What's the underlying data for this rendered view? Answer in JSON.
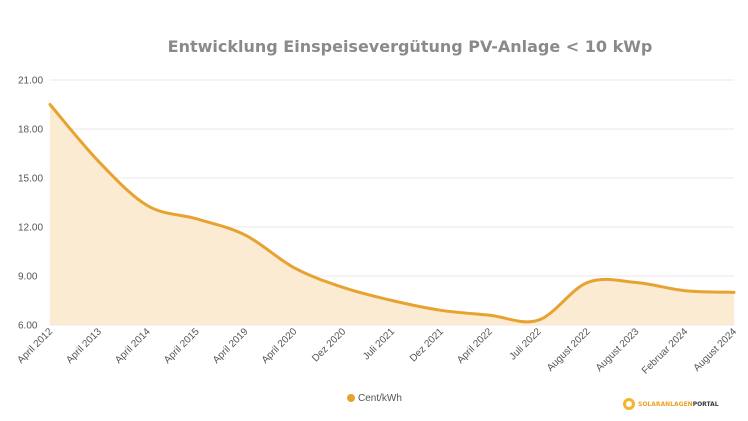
{
  "chart_data": {
    "type": "area",
    "title": "Entwicklung Einspeisevergütung PV-Anlage < 10 kWp",
    "xlabel": "",
    "ylabel": "",
    "ylim": [
      6,
      21
    ],
    "yticks": [
      "6.00",
      "9.00",
      "12.00",
      "15.00",
      "18.00",
      "21.00"
    ],
    "grid": true,
    "legend_position": "bottom",
    "categories": [
      "April 2012",
      "April 2013",
      "April 2014",
      "April 2015",
      "April 2019",
      "April 2020",
      "Dez 2020",
      "Juli 2021",
      "Dez 2021",
      "April 2022",
      "Juli 2022",
      "August 2022",
      "August 2023",
      "Februar 2024",
      "August 2024"
    ],
    "series": [
      {
        "name": "Cent/kWh",
        "values": [
          19.5,
          16.0,
          13.3,
          12.5,
          11.5,
          9.5,
          8.3,
          7.5,
          6.9,
          6.6,
          6.3,
          8.6,
          8.6,
          8.1,
          8.0
        ]
      }
    ],
    "colors": {
      "line": "#e8a230",
      "fill": "#fbebd2",
      "grid": "#e8e8e8"
    }
  },
  "logo": {
    "text_main": "SOLARANLAGEN",
    "text_accent": "PORTAL"
  }
}
